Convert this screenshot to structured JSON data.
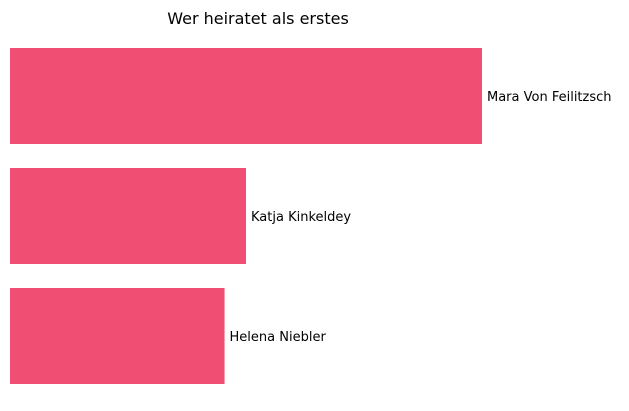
{
  "chart_data": {
    "type": "bar",
    "orientation": "horizontal",
    "title": "Wer heiratet als erstes",
    "categories": [
      "Mara Von Feilitzsch",
      "Katja Kinkeldey",
      "Helena Niebler"
    ],
    "values": [
      22,
      11,
      10
    ],
    "xlim": [
      0,
      22
    ],
    "grid": false,
    "axes_visible": false,
    "bar_color": "#f04e72",
    "label_color": "#000000"
  }
}
